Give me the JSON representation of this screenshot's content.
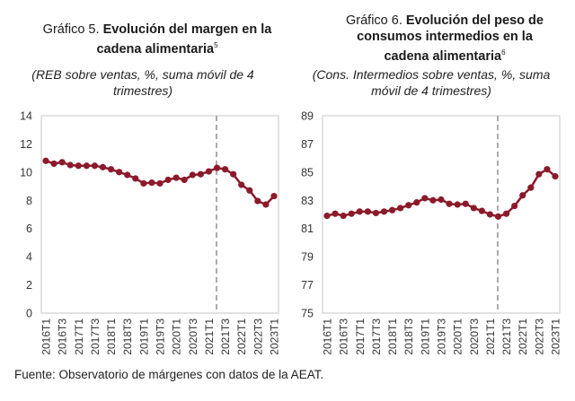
{
  "source": "Fuente: Observatorio de márgenes con datos de la AEAT.",
  "chart_data": [
    {
      "type": "line",
      "title_prefix": "Gráfico 5.",
      "title_bold_1": "Evolución del margen en la",
      "title_bold_2": "cadena alimentaria",
      "footnote": "5",
      "subtitle_1": "(REB sobre ventas, %, suma móvil de 4",
      "subtitle_2": "trimestres)",
      "ylim": [
        0,
        14
      ],
      "yticks": [
        0,
        2,
        4,
        6,
        8,
        10,
        12,
        14
      ],
      "xtick_labels": [
        "2016T1",
        "2016T3",
        "2017T1",
        "2017T3",
        "2018T1",
        "2018T3",
        "2019T1",
        "2019T3",
        "2020T1",
        "2020T3",
        "2021T1",
        "2021T3",
        "2022T1",
        "2022T3",
        "2023T1"
      ],
      "x": [
        "2016T1",
        "2016T2",
        "2016T3",
        "2016T4",
        "2017T1",
        "2017T2",
        "2017T3",
        "2017T4",
        "2018T1",
        "2018T2",
        "2018T3",
        "2018T4",
        "2019T1",
        "2019T2",
        "2019T3",
        "2019T4",
        "2020T1",
        "2020T2",
        "2020T3",
        "2020T4",
        "2021T1",
        "2021T2",
        "2021T3",
        "2021T4",
        "2022T1",
        "2022T2",
        "2022T3",
        "2022T4",
        "2023T1"
      ],
      "series": [
        {
          "name": "REB sobre ventas",
          "color": "#8b1a2b",
          "values": [
            10.8,
            10.6,
            10.7,
            10.5,
            10.45,
            10.45,
            10.45,
            10.35,
            10.2,
            10.0,
            9.8,
            9.55,
            9.2,
            9.25,
            9.2,
            9.45,
            9.6,
            9.45,
            9.8,
            9.85,
            10.05,
            10.3,
            10.2,
            9.85,
            9.1,
            8.7,
            7.95,
            7.7,
            8.3
          ]
        }
      ],
      "vline_at": "2021T2",
      "xlabel": "",
      "ylabel": "",
      "grid": false
    },
    {
      "type": "line",
      "title_prefix": "Gráfico 6.",
      "title_bold_1": "Evolución del peso de",
      "title_bold_2": "consumos intermedios en la",
      "title_bold_3": "cadena alimentaria",
      "footnote": "6",
      "subtitle_1": "(Cons. Intermedios sobre ventas, %, suma",
      "subtitle_2": "móvil de 4 trimestres)",
      "ylim": [
        75,
        89
      ],
      "yticks": [
        75,
        77,
        79,
        81,
        83,
        85,
        87,
        89
      ],
      "xtick_labels": [
        "2016T1",
        "2016T3",
        "2017T1",
        "2017T3",
        "2018T1",
        "2018T3",
        "2019T1",
        "2019T3",
        "2020T1",
        "2020T3",
        "2021T1",
        "2021T3",
        "2022T1",
        "2022T3",
        "2023T1"
      ],
      "x": [
        "2016T1",
        "2016T2",
        "2016T3",
        "2016T4",
        "2017T1",
        "2017T2",
        "2017T3",
        "2017T4",
        "2018T1",
        "2018T2",
        "2018T3",
        "2018T4",
        "2019T1",
        "2019T2",
        "2019T3",
        "2019T4",
        "2020T1",
        "2020T2",
        "2020T3",
        "2020T4",
        "2021T1",
        "2021T2",
        "2021T3",
        "2021T4",
        "2022T1",
        "2022T2",
        "2022T3",
        "2022T4",
        "2023T1"
      ],
      "series": [
        {
          "name": "Cons. Intermedios sobre ventas",
          "color": "#8b1a2b",
          "values": [
            81.9,
            82.05,
            81.9,
            82.05,
            82.2,
            82.2,
            82.1,
            82.2,
            82.3,
            82.45,
            82.65,
            82.85,
            83.15,
            83.0,
            83.05,
            82.75,
            82.7,
            82.75,
            82.45,
            82.25,
            82.0,
            81.85,
            82.05,
            82.6,
            83.35,
            83.9,
            84.85,
            85.2,
            84.7
          ]
        }
      ],
      "vline_at": "2021T2",
      "xlabel": "",
      "ylabel": "",
      "grid": false
    }
  ]
}
